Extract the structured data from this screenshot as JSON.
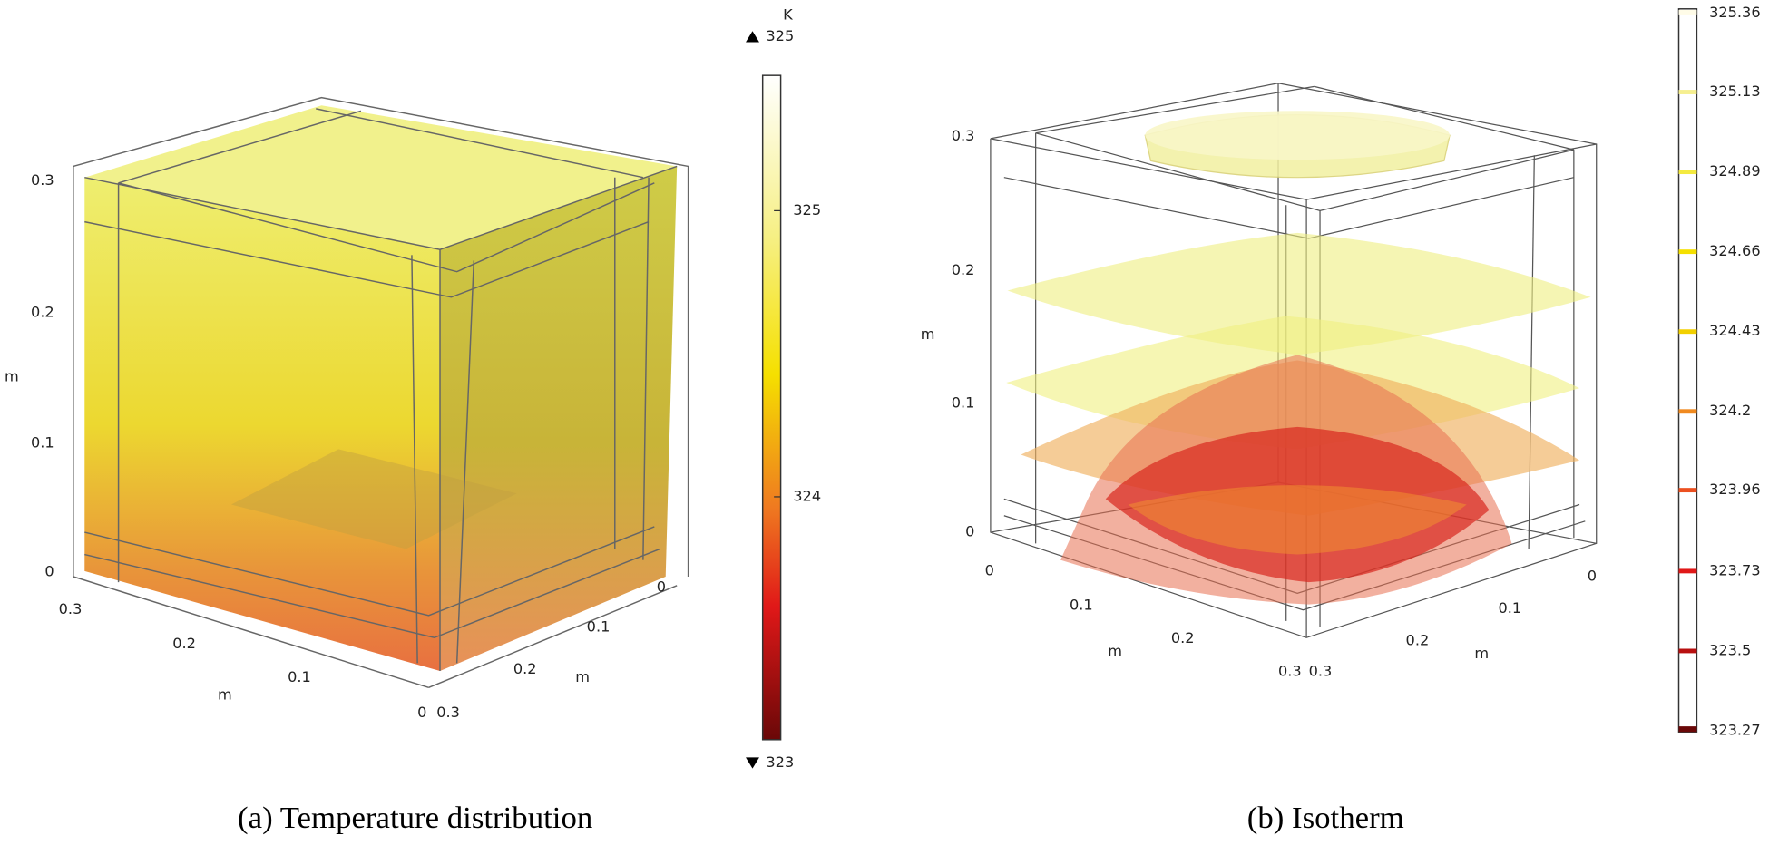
{
  "panels": [
    {
      "caption": "(a) Temperature distribution",
      "axis_unit": "m",
      "z_ticks": [
        "0",
        "0.1",
        "0.2",
        "0.3"
      ],
      "x_ticks": [
        "0.3",
        "0.2",
        "0.1",
        "0"
      ],
      "y_ticks": [
        "0",
        "0.1",
        "0.2",
        "0.3"
      ],
      "colorbar": {
        "unit": "K",
        "max_label": "325",
        "min_label": "323",
        "ticks": [
          "325",
          "324"
        ]
      }
    },
    {
      "caption": "(b) Isotherm",
      "axis_unit": "m",
      "z_ticks": [
        "0",
        "0.1",
        "0.2",
        "0.3"
      ],
      "x_ticks": [
        "0",
        "0.1",
        "0.2",
        "0.3"
      ],
      "y_ticks": [
        "0",
        "0.1",
        "0.2",
        "0.3"
      ],
      "colorbar": {
        "ticks": [
          "325.36",
          "325.13",
          "324.89",
          "324.66",
          "324.43",
          "324.2",
          "323.96",
          "323.73",
          "323.5",
          "323.27"
        ]
      }
    }
  ]
}
